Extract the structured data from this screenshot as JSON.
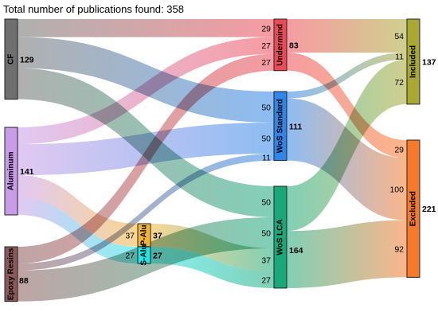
{
  "title": "Total number of publications found: 358",
  "nodes": [
    {
      "id": "cf",
      "label": "CF",
      "value": "129",
      "color": "#6f6f6f"
    },
    {
      "id": "aluminum",
      "label": "Aluminum",
      "value": "141",
      "color": "#c99ce8"
    },
    {
      "id": "epoxy",
      "label": "Epoxy Resins",
      "value": "88",
      "color": "#8a5a5a"
    },
    {
      "id": "palu",
      "label": "P-Alu",
      "value": "37",
      "color": "#f2b53a"
    },
    {
      "id": "salu",
      "label": "S-Alu",
      "value": "27",
      "color": "#22e5e5"
    },
    {
      "id": "undermind",
      "label": "Undermind",
      "value": "83",
      "color": "#ee4a55"
    },
    {
      "id": "wos_standard",
      "label": "WoS Standard",
      "value": "111",
      "color": "#2f86e8"
    },
    {
      "id": "wos_lca",
      "label": "WoS LCA",
      "value": "164",
      "color": "#1aa87a"
    },
    {
      "id": "included",
      "label": "Included",
      "value": "137",
      "color": "#a8a832"
    },
    {
      "id": "excluded",
      "label": "Excluded",
      "value": "221",
      "color": "#f77a2a"
    }
  ],
  "flows": [
    {
      "from": "cf",
      "to": "undermind",
      "value": 29,
      "label": "29"
    },
    {
      "from": "cf",
      "to": "wos_standard",
      "value": 50,
      "label": "50"
    },
    {
      "from": "cf",
      "to": "wos_lca",
      "value": 50,
      "label": "50"
    },
    {
      "from": "aluminum",
      "to": "undermind",
      "value": 27,
      "label": "27"
    },
    {
      "from": "aluminum",
      "to": "wos_standard",
      "value": 50,
      "label": "50"
    },
    {
      "from": "aluminum",
      "to": "palu",
      "value": 37,
      "label": "37"
    },
    {
      "from": "aluminum",
      "to": "salu",
      "value": 27,
      "label": "27"
    },
    {
      "from": "epoxy",
      "to": "undermind",
      "value": 27,
      "label": "27"
    },
    {
      "from": "epoxy",
      "to": "wos_standard",
      "value": 11,
      "label": "11"
    },
    {
      "from": "epoxy",
      "to": "wos_lca",
      "value": 50,
      "label": "50"
    },
    {
      "from": "palu",
      "to": "wos_lca",
      "value": 37,
      "label": "37"
    },
    {
      "from": "salu",
      "to": "wos_lca",
      "value": 27,
      "label": "27"
    },
    {
      "from": "undermind",
      "to": "included",
      "value": 54,
      "label": "54"
    },
    {
      "from": "undermind",
      "to": "excluded",
      "value": 29,
      "label": "29"
    },
    {
      "from": "wos_standard",
      "to": "included",
      "value": 11,
      "label": "11"
    },
    {
      "from": "wos_standard",
      "to": "excluded",
      "value": 100,
      "label": "100"
    },
    {
      "from": "wos_lca",
      "to": "included",
      "value": 72,
      "label": "72"
    },
    {
      "from": "wos_lca",
      "to": "excluded",
      "value": 92,
      "label": "92"
    }
  ]
}
